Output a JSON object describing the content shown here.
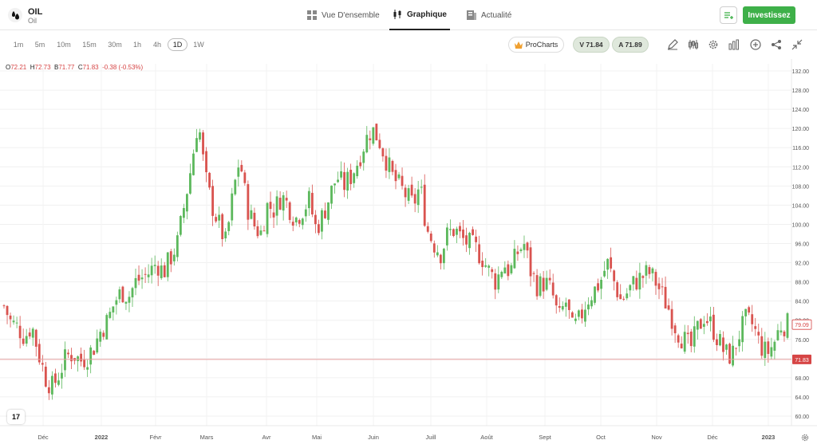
{
  "header": {
    "asset_symbol": "OIL",
    "asset_name": "Oil",
    "tabs": [
      {
        "label": "Vue D'ensemble",
        "icon": "overview-icon"
      },
      {
        "label": "Graphique",
        "icon": "candlestick-icon",
        "active": true
      },
      {
        "label": "Actualité",
        "icon": "news-icon"
      }
    ],
    "invest_label": "Investissez"
  },
  "toolbar": {
    "timeframes": [
      "1m",
      "5m",
      "10m",
      "15m",
      "30m",
      "1h",
      "4h",
      "1D",
      "1W"
    ],
    "active_timeframe": "1D",
    "procharts_label": "ProCharts",
    "sell_label": "V 71.84",
    "buy_label": "A 71.89",
    "tools": [
      "draw-icon",
      "indicators-icon",
      "settings-icon",
      "chart-type-icon",
      "add-icon",
      "share-icon",
      "collapse-icon"
    ]
  },
  "ohlc": {
    "o_label": "O",
    "o": "72.21",
    "h_label": "H",
    "h": "72.73",
    "b_label": "B",
    "b": "71.77",
    "c_label": "C",
    "c": "71.83",
    "change": "-0.38 (-0.53%)"
  },
  "chart_data": {
    "type": "candlestick",
    "y_ticks": [
      "132.00",
      "128.00",
      "124.00",
      "120.00",
      "116.00",
      "112.00",
      "108.00",
      "104.00",
      "100.00",
      "96.00",
      "92.00",
      "88.00",
      "84.00",
      "80.00",
      "76.00",
      "72.00",
      "68.00",
      "64.00",
      "60.00"
    ],
    "ylim": [
      58,
      133.5
    ],
    "x_ticks": [
      "Déc",
      "2022",
      "Févr",
      "Mars",
      "Avr",
      "Mai",
      "Juin",
      "Juill",
      "Août",
      "Sept",
      "Oct",
      "Nov",
      "Déc",
      "2023"
    ],
    "current_price_label": "71.83",
    "current_price": 71.83,
    "secondary_price_label": "79.09",
    "secondary_price": 79.09,
    "up_color": "#5cb85c",
    "down_color": "#d9534f",
    "closes": [
      83.0,
      79.5,
      78.5,
      76.5,
      79.0,
      73.0,
      68.0,
      66.0,
      69.0,
      72.5,
      73.0,
      71.5,
      72.5,
      74.5,
      78.0,
      80.0,
      84.0,
      86.0,
      85.0,
      88.0,
      89.0,
      90.0,
      92.0,
      90.0,
      93.0,
      96.0,
      104.0,
      112.0,
      122.0,
      110.0,
      104.0,
      100.0,
      96.0,
      106.0,
      114.0,
      104.0,
      100.0,
      98.0,
      104.0,
      103.0,
      106.0,
      104.0,
      101.0,
      103.0,
      105.0,
      99.0,
      102.0,
      106.0,
      110.0,
      108.0,
      110.0,
      113.0,
      117.0,
      120.0,
      118.0,
      114.0,
      110.0,
      108.0,
      106.0,
      104.0,
      108.0,
      99.0,
      96.0,
      94.0,
      98.0,
      99.0,
      97.0,
      96.0,
      95.0,
      93.0,
      90.0,
      88.0,
      92.0,
      90.0,
      94.0,
      96.0,
      90.0,
      87.0,
      88.0,
      86.0,
      80.0,
      84.0,
      78.0,
      80.0,
      84.0,
      86.0,
      88.0,
      92.0,
      88.0,
      84.0,
      86.0,
      88.0,
      89.0,
      90.0,
      88.0,
      85.0,
      82.0,
      78.0,
      76.0,
      74.0,
      78.0,
      81.0,
      79.0,
      76.0,
      73.0,
      72.5,
      77.0,
      80.0,
      79.0,
      75.0,
      73.0,
      75.0,
      79.0,
      79.09
    ]
  },
  "footer": {
    "tv_label": "17"
  }
}
